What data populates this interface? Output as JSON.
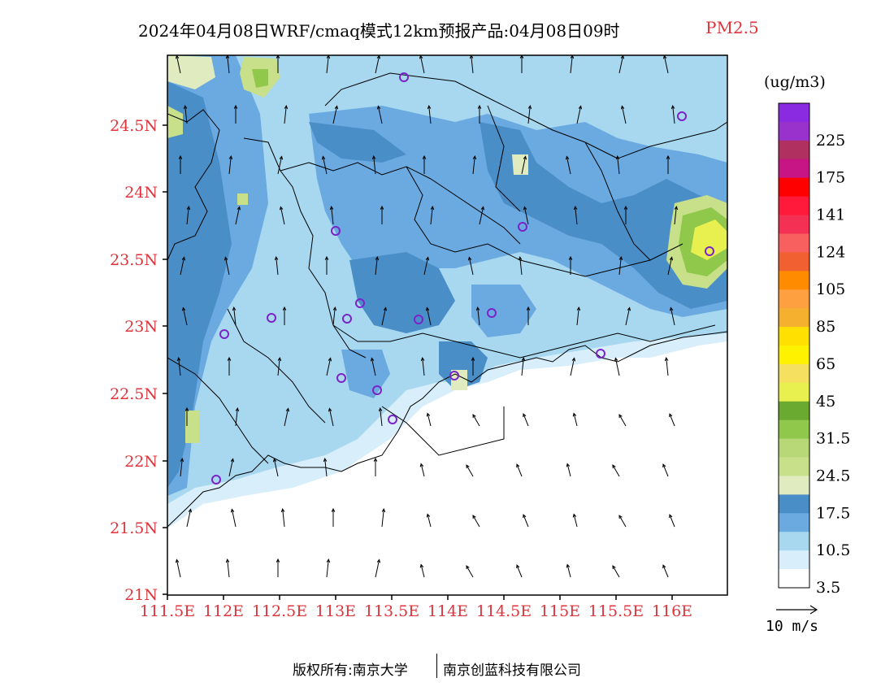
{
  "title": {
    "main": "2024年04月08日WRF/cmaq模式12km预报产品:04月08日09时",
    "variable": "PM2.5"
  },
  "colorbar": {
    "unit": "(ug/m3)",
    "levels": [
      {
        "color": "#8a2be2",
        "label": ""
      },
      {
        "color": "#9932cc",
        "label": "225"
      },
      {
        "color": "#b03060",
        "label": ""
      },
      {
        "color": "#c71585",
        "label": "175"
      },
      {
        "color": "#ff0000",
        "label": ""
      },
      {
        "color": "#ff1a3c",
        "label": "141"
      },
      {
        "color": "#f53055",
        "label": ""
      },
      {
        "color": "#f86060",
        "label": "124"
      },
      {
        "color": "#f06030",
        "label": ""
      },
      {
        "color": "#ff8c00",
        "label": "105"
      },
      {
        "color": "#ffa040",
        "label": ""
      },
      {
        "color": "#f5b030",
        "label": "85"
      },
      {
        "color": "#ffe000",
        "label": ""
      },
      {
        "color": "#fff200",
        "label": "65"
      },
      {
        "color": "#f5e060",
        "label": ""
      },
      {
        "color": "#e8f050",
        "label": "45"
      },
      {
        "color": "#6aaa30",
        "label": ""
      },
      {
        "color": "#8fc84a",
        "label": "31.5"
      },
      {
        "color": "#b8d878",
        "label": ""
      },
      {
        "color": "#c8e08a",
        "label": "24.5"
      },
      {
        "color": "#e0ecc0",
        "label": ""
      },
      {
        "color": "#4a8ec8",
        "label": "17.5"
      },
      {
        "color": "#6aaae0",
        "label": ""
      },
      {
        "color": "#a8d8f0",
        "label": "10.5"
      },
      {
        "color": "#d8eefa",
        "label": ""
      },
      {
        "color": "#ffffff",
        "label": "3.5"
      }
    ]
  },
  "axes": {
    "lat_labels": [
      "24.5N",
      "24N",
      "23.5N",
      "23N",
      "22.5N",
      "22N",
      "21.5N",
      "21N"
    ],
    "lon_labels": [
      "111.5E",
      "112E",
      "112.5E",
      "113E",
      "113.5E",
      "114E",
      "114.5E",
      "115E",
      "115.5E",
      "116E"
    ]
  },
  "vector_legend": {
    "label": "10 m/s"
  },
  "footer": {
    "left": "版权所有:南京大学",
    "right": "南京创蓝科技有限公司"
  }
}
